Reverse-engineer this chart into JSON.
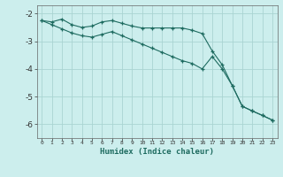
{
  "xlabel": "Humidex (Indice chaleur)",
  "background_color": "#cceeed",
  "grid_color": "#aad4d2",
  "line_color": "#1e6b60",
  "xlim": [
    -0.5,
    23.5
  ],
  "ylim": [
    -6.5,
    -1.7
  ],
  "yticks": [
    -6,
    -5,
    -4,
    -3,
    -2
  ],
  "xticks": [
    0,
    1,
    2,
    3,
    4,
    5,
    6,
    7,
    8,
    9,
    10,
    11,
    12,
    13,
    14,
    15,
    16,
    17,
    18,
    19,
    20,
    21,
    22,
    23
  ],
  "series1_x": [
    0,
    1,
    2,
    3,
    4,
    5,
    6,
    7,
    8,
    9,
    10,
    11,
    12,
    13,
    14,
    15,
    16,
    17,
    18,
    19,
    20,
    21,
    22,
    23
  ],
  "series1_y": [
    -2.25,
    -2.3,
    -2.2,
    -2.4,
    -2.5,
    -2.45,
    -2.3,
    -2.25,
    -2.35,
    -2.45,
    -2.52,
    -2.52,
    -2.52,
    -2.52,
    -2.52,
    -2.6,
    -2.72,
    -3.35,
    -3.85,
    -4.6,
    -5.35,
    -5.52,
    -5.68,
    -5.85
  ],
  "series2_x": [
    0,
    1,
    2,
    3,
    4,
    5,
    6,
    7,
    8,
    9,
    10,
    11,
    12,
    13,
    14,
    15,
    16,
    17,
    18,
    19,
    20,
    21,
    22,
    23
  ],
  "series2_y": [
    -2.25,
    -2.4,
    -2.55,
    -2.7,
    -2.8,
    -2.85,
    -2.75,
    -2.65,
    -2.8,
    -2.95,
    -3.1,
    -3.25,
    -3.4,
    -3.55,
    -3.7,
    -3.8,
    -4.0,
    -3.55,
    -4.0,
    -4.6,
    -5.35,
    -5.52,
    -5.68,
    -5.85
  ]
}
